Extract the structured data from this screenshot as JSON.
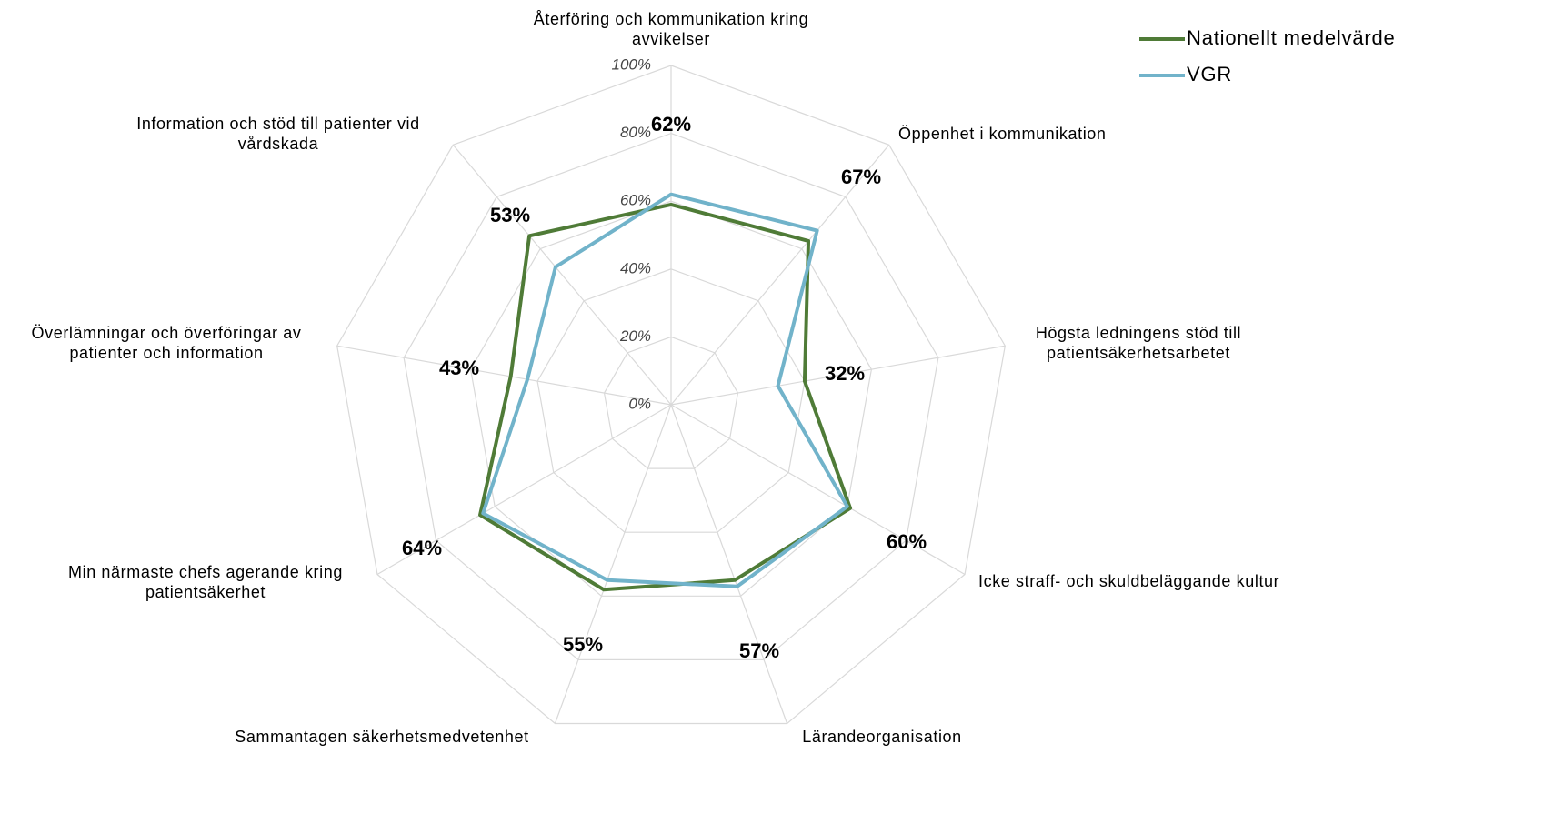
{
  "chart_data": {
    "type": "radar",
    "categories": [
      "Återföring och kommunikation kring\navvikelser",
      "Öppenhet i kommunikation",
      "Högsta ledningens stöd till\npatientsäkerhetsarbetet",
      "Icke straff- och skuldbeläggande kultur",
      "Lärandeorganisation",
      "Sammantagen säkerhetsmedvetenhet",
      "Min närmaste chefs agerande kring\npatientsäkerhet",
      "Överlämningar och överföringar av\npatienter och information",
      "Information och stöd till patienter vid\nvårdskada"
    ],
    "series": [
      {
        "name": "Nationellt medelvärde",
        "color": "#4f7b37",
        "values": [
          59,
          63,
          40,
          61,
          55,
          58,
          65,
          48,
          65
        ]
      },
      {
        "name": "VGR",
        "color": "#71b3ca",
        "values": [
          62,
          67,
          32,
          60,
          57,
          55,
          64,
          43,
          53
        ],
        "value_labels": [
          "62%",
          "67%",
          "32%",
          "60%",
          "57%",
          "55%",
          "64%",
          "43%",
          "53%"
        ]
      }
    ],
    "ylim": [
      0,
      100
    ],
    "yticks": [
      {
        "value": 0,
        "label": "0%"
      },
      {
        "value": 20,
        "label": "20%"
      },
      {
        "value": 40,
        "label": "40%"
      },
      {
        "value": 60,
        "label": "60%"
      },
      {
        "value": 80,
        "label": "80%"
      },
      {
        "value": 100,
        "label": "100%"
      }
    ],
    "grid": true,
    "legend": "top-right"
  }
}
